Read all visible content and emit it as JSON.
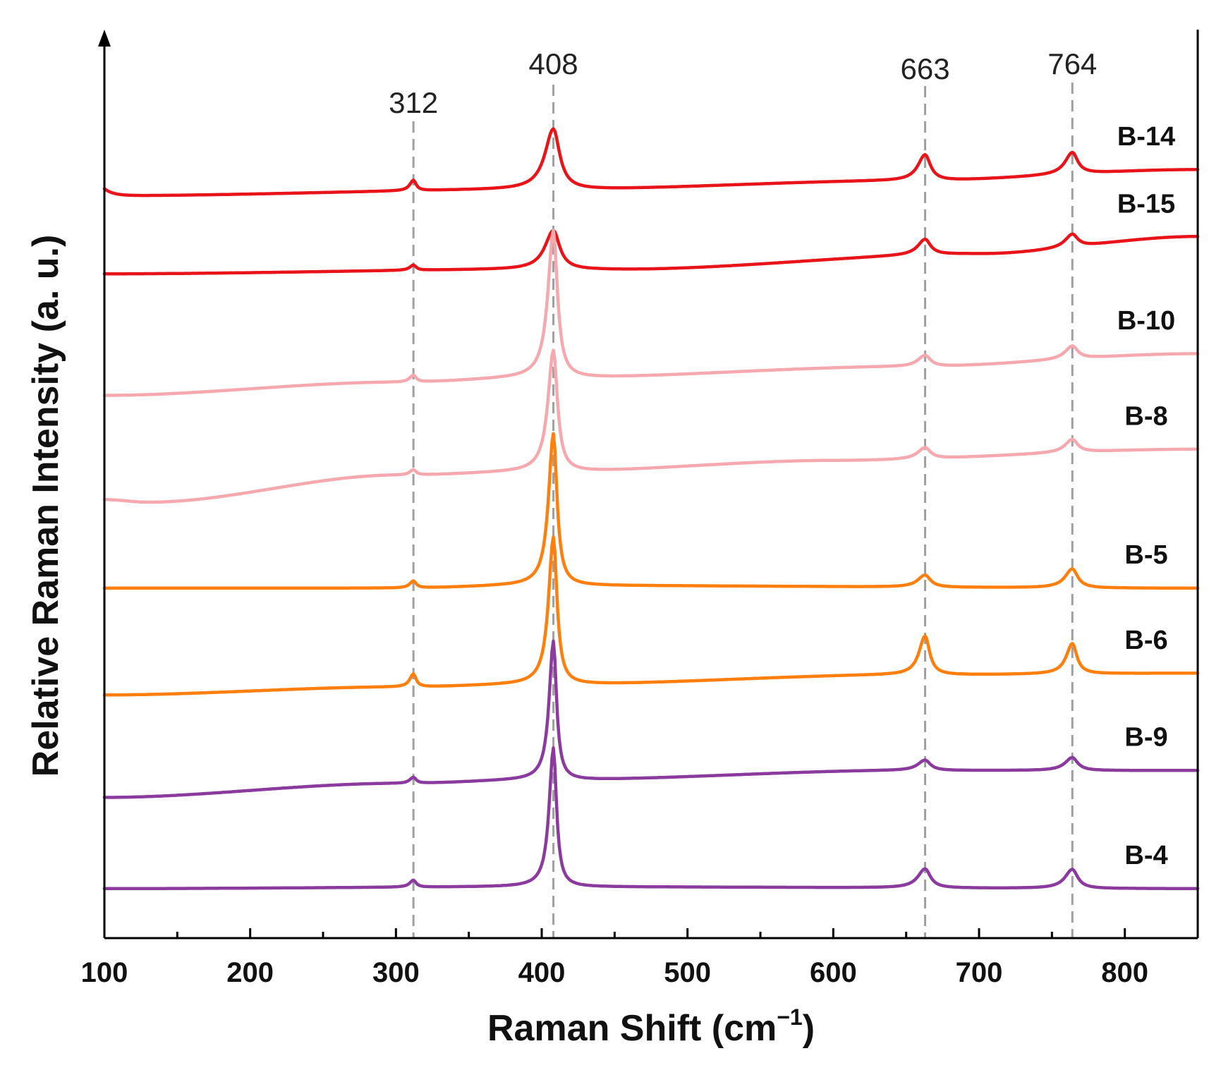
{
  "chart_data": {
    "type": "line",
    "title": "",
    "xlabel": "Raman Shift (cm",
    "xlabel_superscript": "−1",
    "xlabel_close": ")",
    "ylabel": "Relative Raman Intensity (a. u.)",
    "xlim": [
      100,
      850
    ],
    "ylim": [
      0,
      10.3
    ],
    "x_ticks": [
      100,
      200,
      300,
      400,
      500,
      600,
      700,
      800
    ],
    "y_ticks": [],
    "grid": false,
    "legend": "labels beside curves (right)",
    "peak_markers": [
      {
        "x": 312,
        "label": "312"
      },
      {
        "x": 408,
        "label": "408"
      },
      {
        "x": 663,
        "label": "663"
      },
      {
        "x": 764,
        "label": "764"
      }
    ],
    "series": [
      {
        "name": "B-14",
        "color": "#e8141a",
        "baseline": [
          [
            100,
            8.55
          ],
          [
            400,
            8.62
          ],
          [
            650,
            8.72
          ],
          [
            850,
            8.85
          ]
        ],
        "edge_bump": 0.08,
        "peaks": [
          [
            312,
            0.12,
            3
          ],
          [
            408,
            0.7,
            7
          ],
          [
            663,
            0.3,
            6
          ],
          [
            764,
            0.25,
            6
          ]
        ]
      },
      {
        "name": "B-15",
        "color": "#e8141a",
        "baseline": [
          [
            100,
            7.65
          ],
          [
            400,
            7.7
          ],
          [
            450,
            7.7
          ],
          [
            700,
            7.88
          ],
          [
            850,
            8.08
          ]
        ],
        "peaks": [
          [
            312,
            0.06,
            3
          ],
          [
            408,
            0.45,
            7
          ],
          [
            663,
            0.18,
            6
          ],
          [
            764,
            0.15,
            6
          ]
        ]
      },
      {
        "name": "B-10",
        "color": "#f5a9ae",
        "baseline": [
          [
            100,
            6.25
          ],
          [
            300,
            6.4
          ],
          [
            400,
            6.45
          ],
          [
            650,
            6.58
          ],
          [
            850,
            6.73
          ]
        ],
        "peaks": [
          [
            312,
            0.08,
            3
          ],
          [
            408,
            1.7,
            4.5
          ],
          [
            663,
            0.13,
            6
          ],
          [
            764,
            0.15,
            6
          ]
        ]
      },
      {
        "name": "B-8",
        "color": "#f5a9ae",
        "baseline": [
          [
            100,
            5.05
          ],
          [
            130,
            5.02
          ],
          [
            300,
            5.33
          ],
          [
            400,
            5.37
          ],
          [
            600,
            5.5
          ],
          [
            850,
            5.63
          ]
        ],
        "peaks": [
          [
            312,
            0.06,
            3
          ],
          [
            408,
            1.4,
            4.5
          ],
          [
            663,
            0.13,
            6
          ],
          [
            764,
            0.15,
            6
          ]
        ]
      },
      {
        "name": "B-5",
        "color": "#ff7f0e",
        "baseline": [
          [
            100,
            4.03
          ],
          [
            300,
            4.03
          ],
          [
            400,
            4.06
          ],
          [
            850,
            4.03
          ]
        ],
        "peaks": [
          [
            312,
            0.08,
            3
          ],
          [
            408,
            1.75,
            4
          ],
          [
            663,
            0.14,
            6
          ],
          [
            764,
            0.22,
            6
          ]
        ]
      },
      {
        "name": "B-6",
        "color": "#ff7f0e",
        "baseline": [
          [
            100,
            2.8
          ],
          [
            300,
            2.89
          ],
          [
            400,
            2.92
          ],
          [
            650,
            3.03
          ],
          [
            850,
            3.05
          ]
        ],
        "peaks": [
          [
            312,
            0.15,
            3
          ],
          [
            408,
            1.7,
            4
          ],
          [
            663,
            0.45,
            5
          ],
          [
            764,
            0.35,
            5
          ]
        ]
      },
      {
        "name": "B-9",
        "color": "#8b3a9e",
        "baseline": [
          [
            100,
            1.62
          ],
          [
            300,
            1.78
          ],
          [
            400,
            1.82
          ],
          [
            650,
            1.93
          ],
          [
            850,
            1.93
          ]
        ],
        "peaks": [
          [
            312,
            0.07,
            3
          ],
          [
            408,
            1.6,
            3.5
          ],
          [
            663,
            0.12,
            6
          ],
          [
            764,
            0.15,
            6
          ]
        ]
      },
      {
        "name": "B-4",
        "color": "#8b3a9e",
        "baseline": [
          [
            100,
            0.57
          ],
          [
            400,
            0.59
          ],
          [
            850,
            0.57
          ]
        ],
        "peaks": [
          [
            312,
            0.08,
            3
          ],
          [
            408,
            1.6,
            3.5
          ],
          [
            663,
            0.22,
            6
          ],
          [
            764,
            0.22,
            6
          ]
        ]
      }
    ]
  }
}
